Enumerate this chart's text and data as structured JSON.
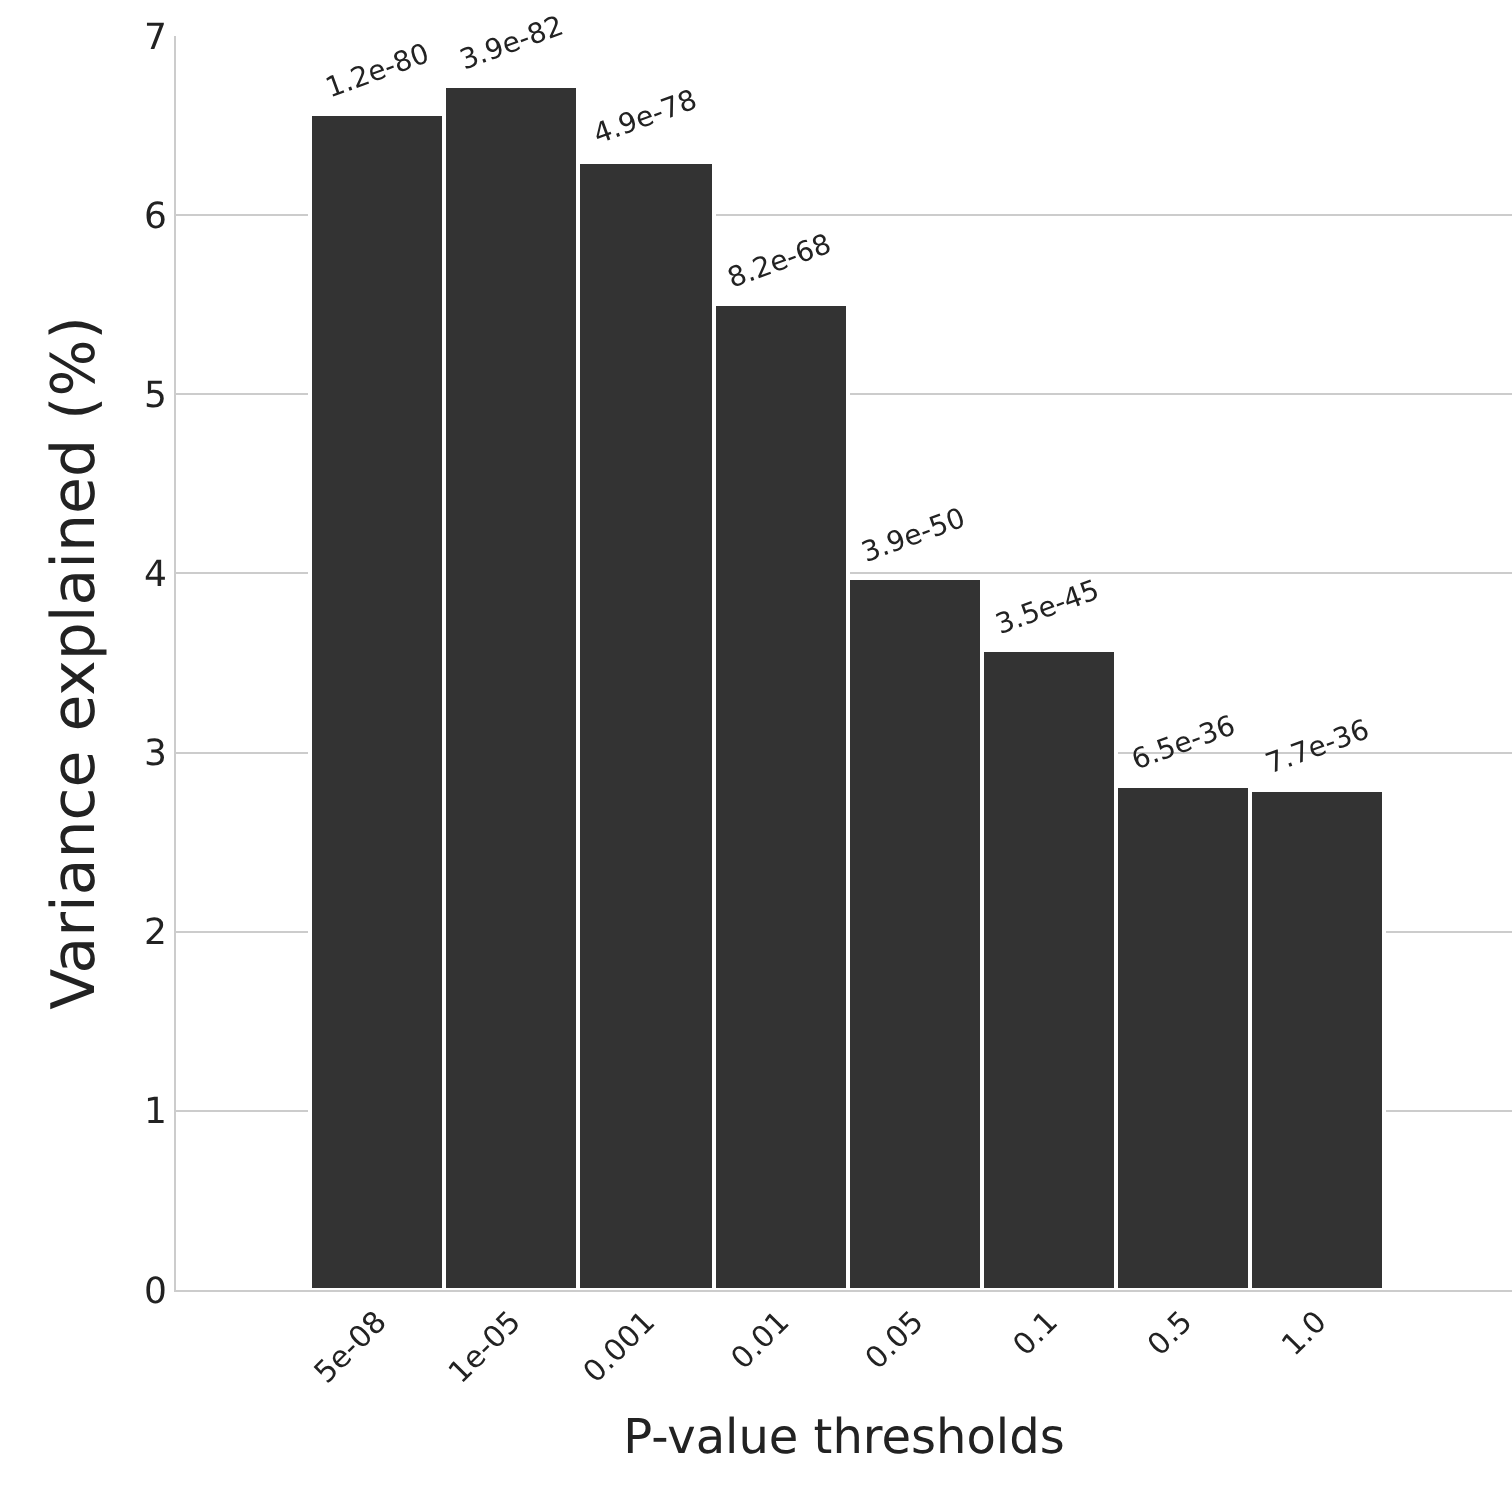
{
  "chart_data": {
    "type": "bar",
    "xlabel": "P-value thresholds",
    "ylabel": "Variance explained (%)",
    "categories": [
      "5e-08",
      "1e-05",
      "0.001",
      "0.01",
      "0.05",
      "0.1",
      "0.5",
      "1.0"
    ],
    "values": [
      6.56,
      6.72,
      6.3,
      5.5,
      3.97,
      3.57,
      2.81,
      2.79
    ],
    "annotations": [
      {
        "text": "1.2e-80",
        "x": "5e-08",
        "y": 6.56
      },
      {
        "text": "3.9e-82",
        "x": "1e-05",
        "y": 6.72
      },
      {
        "text": "4.9e-78",
        "x": "0.001",
        "y": 6.3
      },
      {
        "text": "8.2e-68",
        "x": "0.01",
        "y": 5.5
      },
      {
        "text": "3.9e-50",
        "x": "0.05",
        "y": 3.97
      },
      {
        "text": "3.5e-45",
        "x": "0.1",
        "y": 3.57
      },
      {
        "text": "6.5e-36",
        "x": "0.5",
        "y": 2.81
      },
      {
        "text": "7.7e-36",
        "x": "1.0",
        "y": 2.79
      }
    ],
    "color": "#333333",
    "ylim": [
      0,
      7
    ],
    "yticks": [
      0,
      1,
      2,
      3,
      4,
      5,
      6,
      7
    ],
    "grid": "y",
    "legend": false
  }
}
